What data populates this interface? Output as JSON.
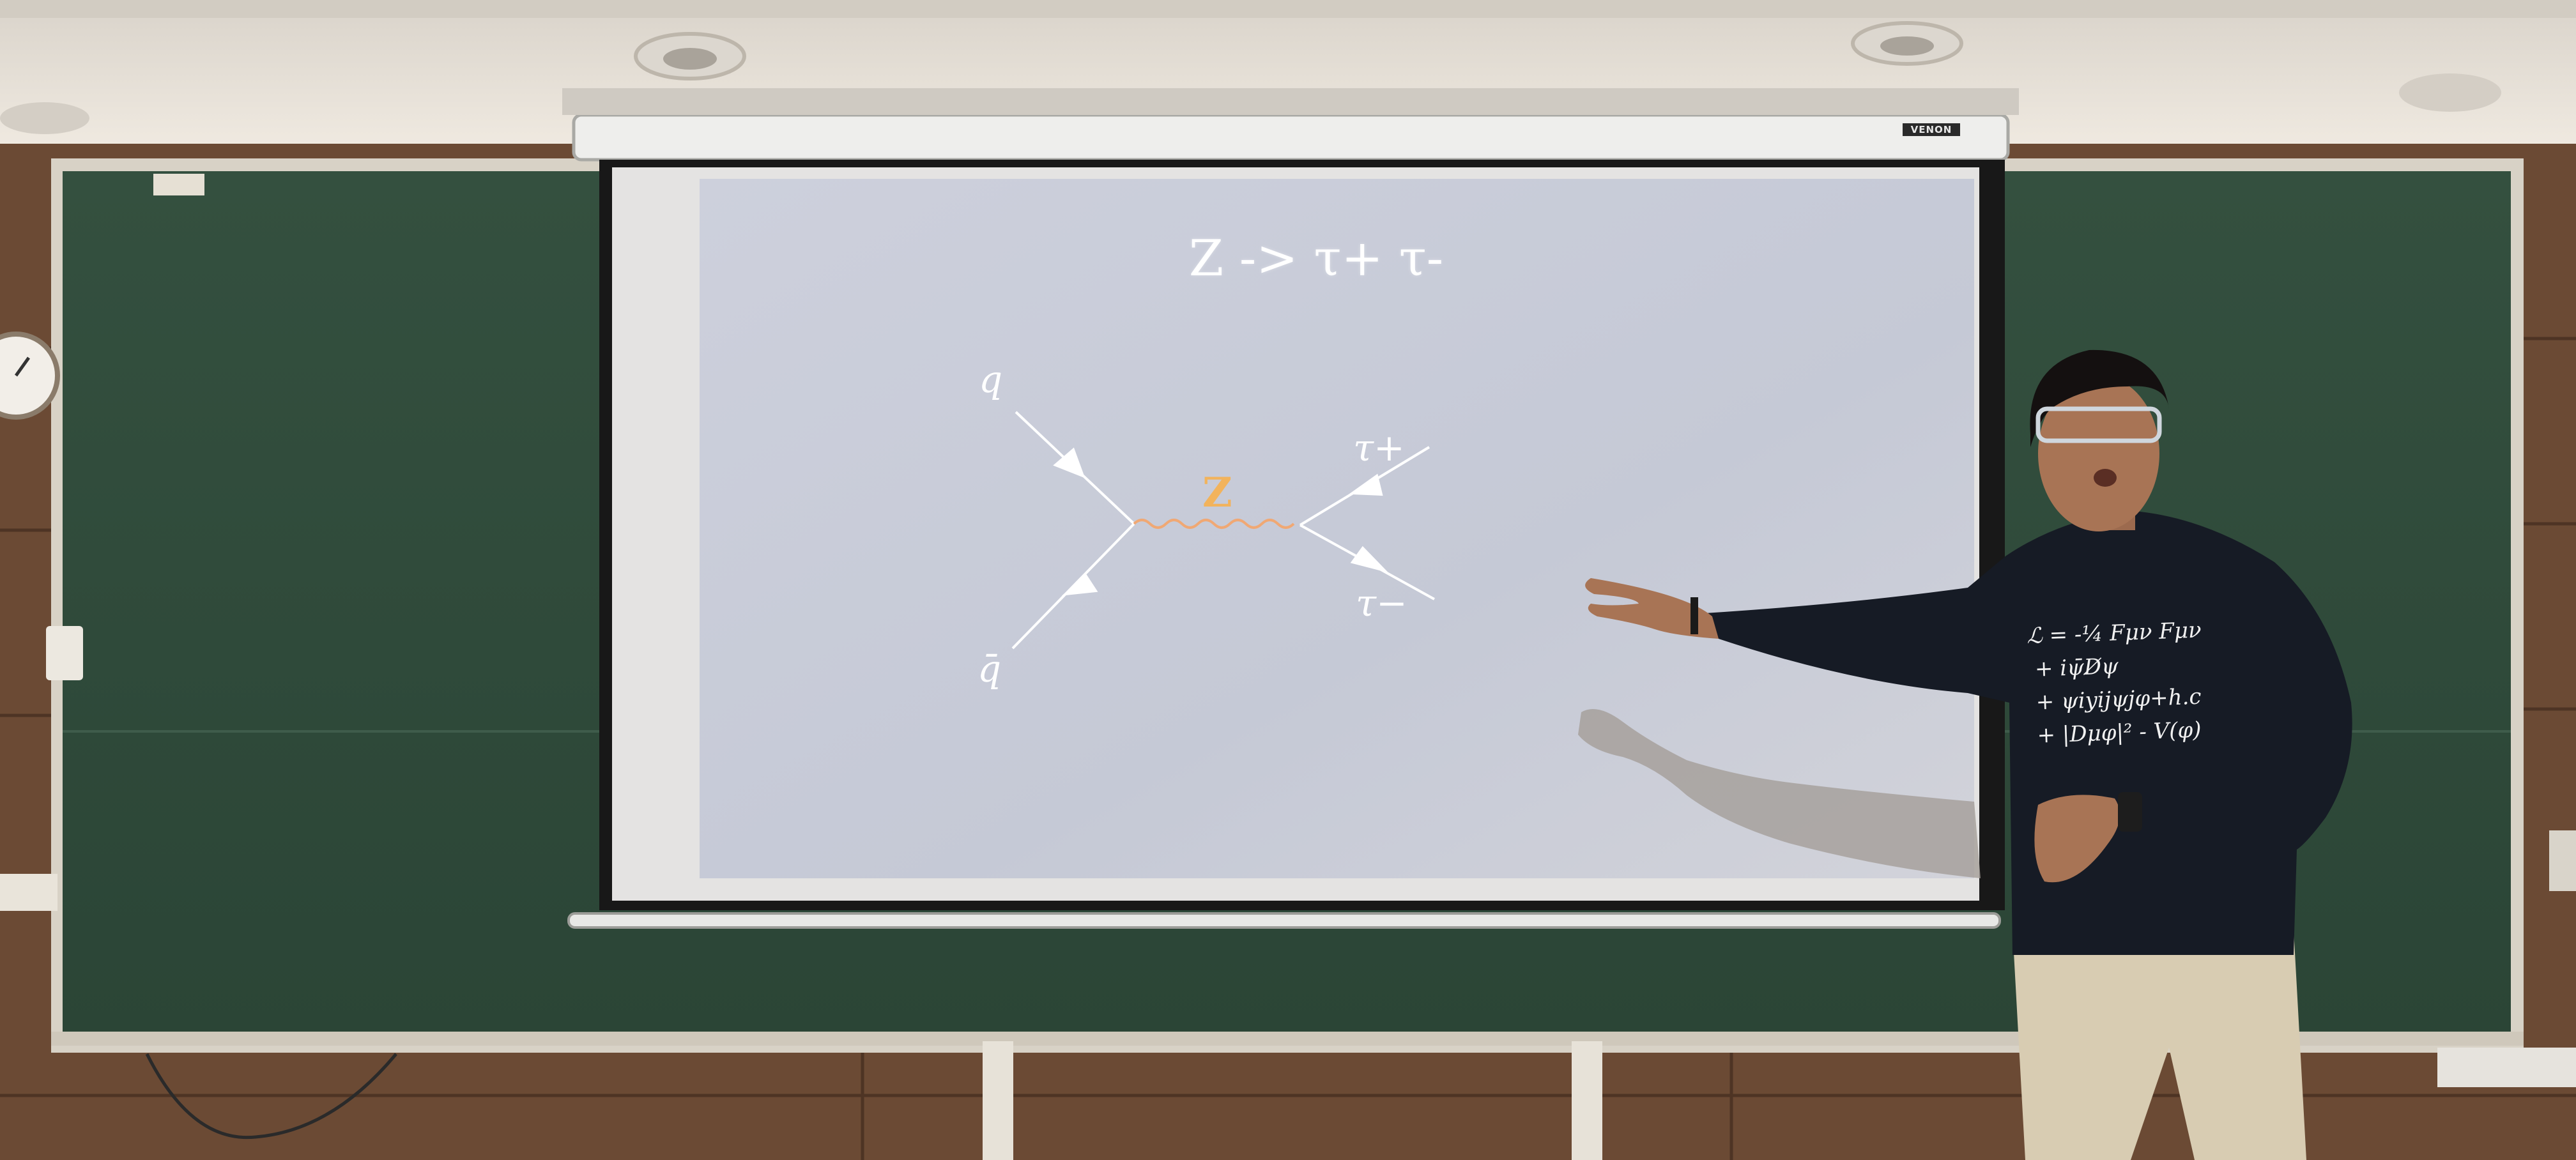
{
  "slide": {
    "title": "Z -> τ+ τ-"
  },
  "feynman_diagram": {
    "incoming_quark_label": "q",
    "incoming_antiquark_label": "q̄",
    "boson_label": "Z",
    "outgoing_tau_plus_label": "τ+",
    "outgoing_tau_minus_label": "τ−",
    "boson_color": "#f2b35c",
    "line_color": "#ffffff"
  },
  "projector": {
    "brand_text": "VENON"
  },
  "presenter": {
    "hoodie_text": "ℒ = -¼ Fμν Fμν\n + iψ̄D̸ψ\n + ψiyijψjφ+h.c\n + |Dμφ|² - V(φ)"
  },
  "colors": {
    "chalkboard": "#2f4a3b",
    "screen": "#c6cad8",
    "wall": "#6b4a34",
    "ceiling": "#e9e4dc"
  }
}
